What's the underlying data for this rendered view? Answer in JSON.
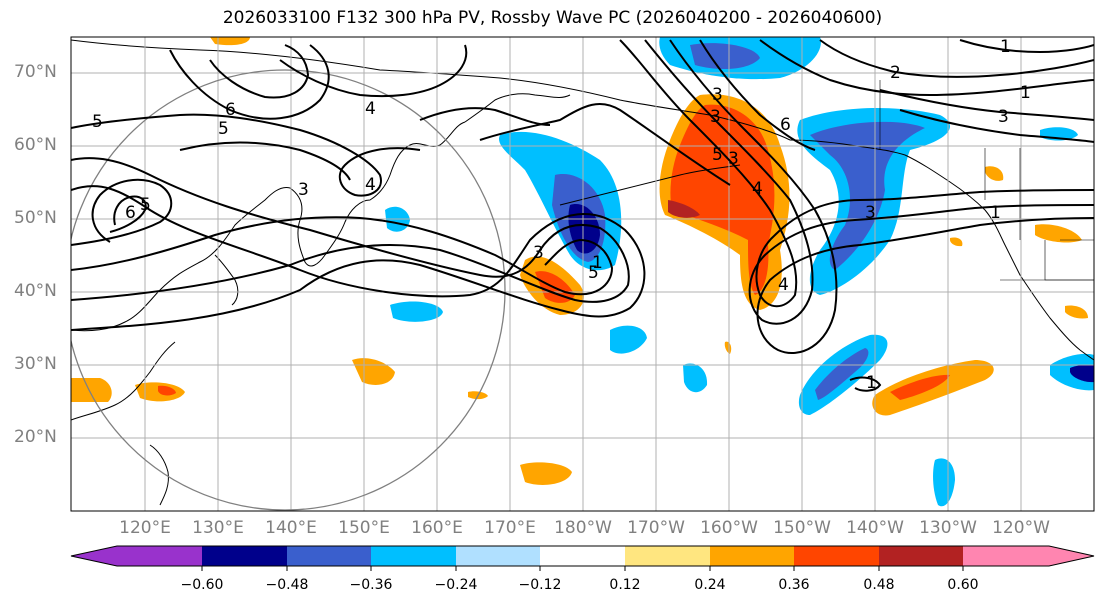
{
  "title": "2026033100 F132 300 hPa PV, Rossby Wave PC (2026040200 - 2026040600)",
  "map": {
    "lat_labels": [
      "70°N",
      "60°N",
      "50°N",
      "40°N",
      "30°N",
      "20°N"
    ],
    "lon_labels": [
      "120°E",
      "130°E",
      "140°E",
      "150°E",
      "160°E",
      "170°E",
      "180°W",
      "170°W",
      "160°W",
      "150°W",
      "140°W",
      "130°W",
      "120°W"
    ],
    "contour_labels": [
      "5",
      "6",
      "5",
      "4",
      "4",
      "3",
      "6",
      "5",
      "3",
      "5",
      "1",
      "3",
      "3",
      "6",
      "5",
      "3",
      "4",
      "4",
      "3",
      "1",
      "1",
      "1",
      "2",
      "3",
      "1"
    ]
  },
  "colorbar": {
    "ticks": [
      "−0.60",
      "−0.48",
      "−0.36",
      "−0.24",
      "−0.12",
      "0.12",
      "0.24",
      "0.36",
      "0.48",
      "0.60"
    ],
    "colors": [
      "#9932cc",
      "#00008b",
      "#3a5fcd",
      "#00bfff",
      "#b0e0ff",
      "#ffffff",
      "#ffe680",
      "#ffa500",
      "#ff4500",
      "#b22222",
      "#ff85b0"
    ]
  }
}
